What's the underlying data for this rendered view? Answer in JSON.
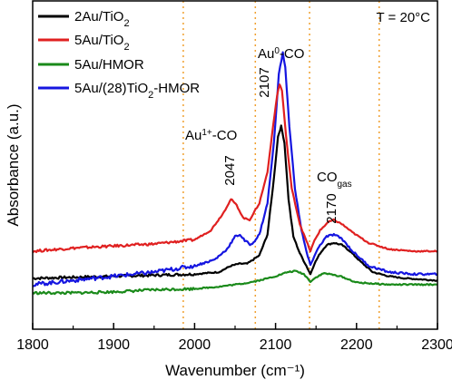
{
  "chart_data": {
    "type": "line",
    "title": "",
    "xlabel": "Wavenumber (cm⁻¹)",
    "ylabel": "Absorbance (a.u.)",
    "xlim": [
      1800,
      2300
    ],
    "x_ticks": [
      "1800",
      "1900",
      "2000",
      "2100",
      "2200",
      "2300"
    ],
    "y_ticks": "none",
    "condition": "T = 20°C",
    "reference_lines_x": [
      1986,
      2075,
      2142,
      2228
    ],
    "legend_position": "top-left",
    "legend": [
      {
        "main": "2Au/TiO",
        "sub": "2",
        "rest": ""
      },
      {
        "main": "5Au/TiO",
        "sub": "2",
        "rest": ""
      },
      {
        "main": "5Au/HMOR",
        "sub": "",
        "rest": ""
      },
      {
        "main": "5Au/(28)TiO",
        "sub": "2",
        "rest": "-HMOR"
      }
    ],
    "annotations": [
      {
        "label": "Au",
        "sup": "1+",
        "rest": "-CO"
      },
      {
        "label": "Au",
        "sup": "0",
        "rest": "-CO"
      },
      {
        "label": "CO",
        "sub": "gas"
      }
    ],
    "peak_labels": [
      "2047",
      "2107",
      "2170"
    ],
    "series": [
      {
        "name": "2Au/TiO2",
        "color": "#000000",
        "x": [
          1800,
          1850,
          1900,
          1950,
          2000,
          2030,
          2045,
          2055,
          2065,
          2080,
          2090,
          2098,
          2103,
          2107,
          2111,
          2116,
          2122,
          2130,
          2138,
          2143,
          2148,
          2155,
          2163,
          2172,
          2182,
          2192,
          2205,
          2220,
          2240,
          2260,
          2280,
          2300
        ],
        "y": [
          0.07,
          0.075,
          0.08,
          0.085,
          0.09,
          0.1,
          0.13,
          0.14,
          0.14,
          0.18,
          0.28,
          0.55,
          0.75,
          0.8,
          0.72,
          0.45,
          0.27,
          0.19,
          0.13,
          0.09,
          0.14,
          0.19,
          0.23,
          0.24,
          0.23,
          0.2,
          0.15,
          0.1,
          0.08,
          0.07,
          0.065,
          0.06
        ]
      },
      {
        "name": "5Au/TiO2",
        "color": "#e02020",
        "x": [
          1800,
          1850,
          1900,
          1950,
          2000,
          2020,
          2035,
          2045,
          2052,
          2060,
          2068,
          2080,
          2090,
          2097,
          2102,
          2105,
          2108,
          2113,
          2120,
          2130,
          2138,
          2143,
          2148,
          2155,
          2165,
          2172,
          2182,
          2195,
          2215,
          2240,
          2270,
          2300
        ],
        "y": [
          0.2,
          0.215,
          0.225,
          0.235,
          0.255,
          0.3,
          0.38,
          0.45,
          0.42,
          0.36,
          0.35,
          0.43,
          0.58,
          0.8,
          0.95,
          1.0,
          0.97,
          0.75,
          0.5,
          0.33,
          0.25,
          0.2,
          0.25,
          0.3,
          0.34,
          0.35,
          0.33,
          0.29,
          0.24,
          0.21,
          0.2,
          0.2
        ]
      },
      {
        "name": "5Au/HMOR",
        "color": "#1a8a1a",
        "x": [
          1800,
          1850,
          1900,
          1950,
          2000,
          2030,
          2060,
          2080,
          2100,
          2115,
          2125,
          2135,
          2143,
          2150,
          2160,
          2180,
          2200,
          2240,
          2270,
          2300
        ],
        "y": [
          0.0,
          0.0,
          0.005,
          0.015,
          0.02,
          0.03,
          0.045,
          0.06,
          0.08,
          0.1,
          0.105,
          0.09,
          0.055,
          0.075,
          0.095,
          0.08,
          0.05,
          0.04,
          0.04,
          0.04
        ]
      },
      {
        "name": "5Au/(28)TiO2-HMOR",
        "color": "#1515e0",
        "x": [
          1800,
          1850,
          1900,
          1950,
          2000,
          2025,
          2040,
          2050,
          2056,
          2062,
          2070,
          2080,
          2090,
          2098,
          2104,
          2109,
          2112,
          2117,
          2124,
          2132,
          2138,
          2143,
          2148,
          2155,
          2163,
          2172,
          2182,
          2195,
          2215,
          2240,
          2270,
          2300
        ],
        "y": [
          0.04,
          0.06,
          0.08,
          0.1,
          0.13,
          0.16,
          0.21,
          0.27,
          0.28,
          0.25,
          0.23,
          0.28,
          0.43,
          0.72,
          1.05,
          1.15,
          1.08,
          0.8,
          0.5,
          0.3,
          0.2,
          0.13,
          0.18,
          0.23,
          0.27,
          0.28,
          0.26,
          0.2,
          0.13,
          0.1,
          0.09,
          0.09
        ]
      }
    ]
  }
}
